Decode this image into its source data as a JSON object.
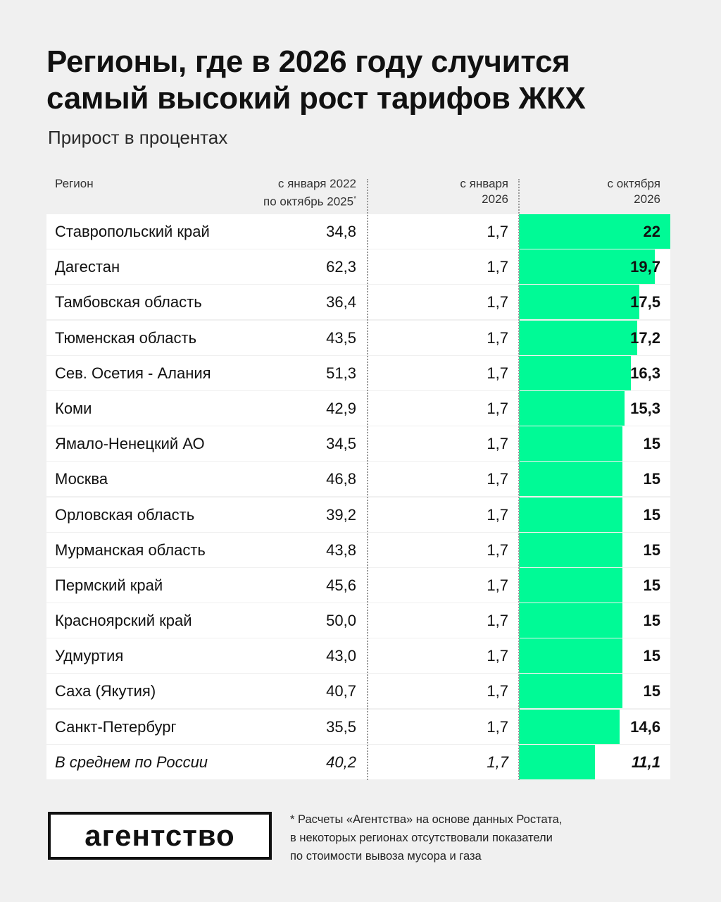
{
  "title_lines": [
    "Регионы, где в 2026 году случится",
    "самый высокий рост тарифов ЖКХ"
  ],
  "subtitle": "Прирост в процентах",
  "columns": {
    "region": "Регион",
    "c1": [
      "с января 2022",
      "по октябрь 2025"
    ],
    "c1_mark": "*",
    "c2": [
      "с января",
      "2026"
    ],
    "c3": [
      "с октября",
      "2026"
    ]
  },
  "colors": {
    "bar": "#00fa96",
    "background": "#f0f0f0",
    "row": "#ffffff"
  },
  "chart_data": {
    "type": "table",
    "bar_column": "с октября 2026",
    "bar_max": 22,
    "rows": [
      {
        "region": "Ставропольский край",
        "v1": "34,8",
        "v2": "1,7",
        "v3": "22",
        "value": 22
      },
      {
        "region": "Дагестан",
        "v1": "62,3",
        "v2": "1,7",
        "v3": "19,7",
        "value": 19.7
      },
      {
        "region": "Тамбовская область",
        "v1": "36,4",
        "v2": "1,7",
        "v3": "17,5",
        "value": 17.5
      },
      {
        "region": "Тюменская область",
        "v1": "43,5",
        "v2": "1,7",
        "v3": "17,2",
        "value": 17.2
      },
      {
        "region": "Сев. Осетия - Алания",
        "v1": "51,3",
        "v2": "1,7",
        "v3": "16,3",
        "value": 16.3
      },
      {
        "region": "Коми",
        "v1": "42,9",
        "v2": "1,7",
        "v3": "15,3",
        "value": 15.3
      },
      {
        "region": "Ямало-Ненецкий АО",
        "v1": "34,5",
        "v2": "1,7",
        "v3": "15",
        "value": 15
      },
      {
        "region": "Москва",
        "v1": "46,8",
        "v2": "1,7",
        "v3": "15",
        "value": 15
      },
      {
        "region": "Орловская область",
        "v1": "39,2",
        "v2": "1,7",
        "v3": "15",
        "value": 15
      },
      {
        "region": "Мурманская область",
        "v1": "43,8",
        "v2": "1,7",
        "v3": "15",
        "value": 15
      },
      {
        "region": "Пермский край",
        "v1": "45,6",
        "v2": "1,7",
        "v3": "15",
        "value": 15
      },
      {
        "region": "Красноярский край",
        "v1": "50,0",
        "v2": "1,7",
        "v3": "15",
        "value": 15
      },
      {
        "region": "Удмуртия",
        "v1": "43,0",
        "v2": "1,7",
        "v3": "15",
        "value": 15
      },
      {
        "region": "Саха (Якутия)",
        "v1": "40,7",
        "v2": "1,7",
        "v3": "15",
        "value": 15
      },
      {
        "region": "Санкт-Петербург",
        "v1": "35,5",
        "v2": "1,7",
        "v3": "14,6",
        "value": 14.6
      },
      {
        "region": "В среднем по России",
        "v1": "40,2",
        "v2": "1,7",
        "v3": "11,1",
        "value": 11.1,
        "average": true
      }
    ]
  },
  "logo_text": "агентство",
  "footnote_lines": [
    "* Расчеты «Агентства» на основе данных Ростата,",
    "в некоторых регионах отсутствовали показатели",
    "по стоимости вывоза мусора и газа"
  ]
}
